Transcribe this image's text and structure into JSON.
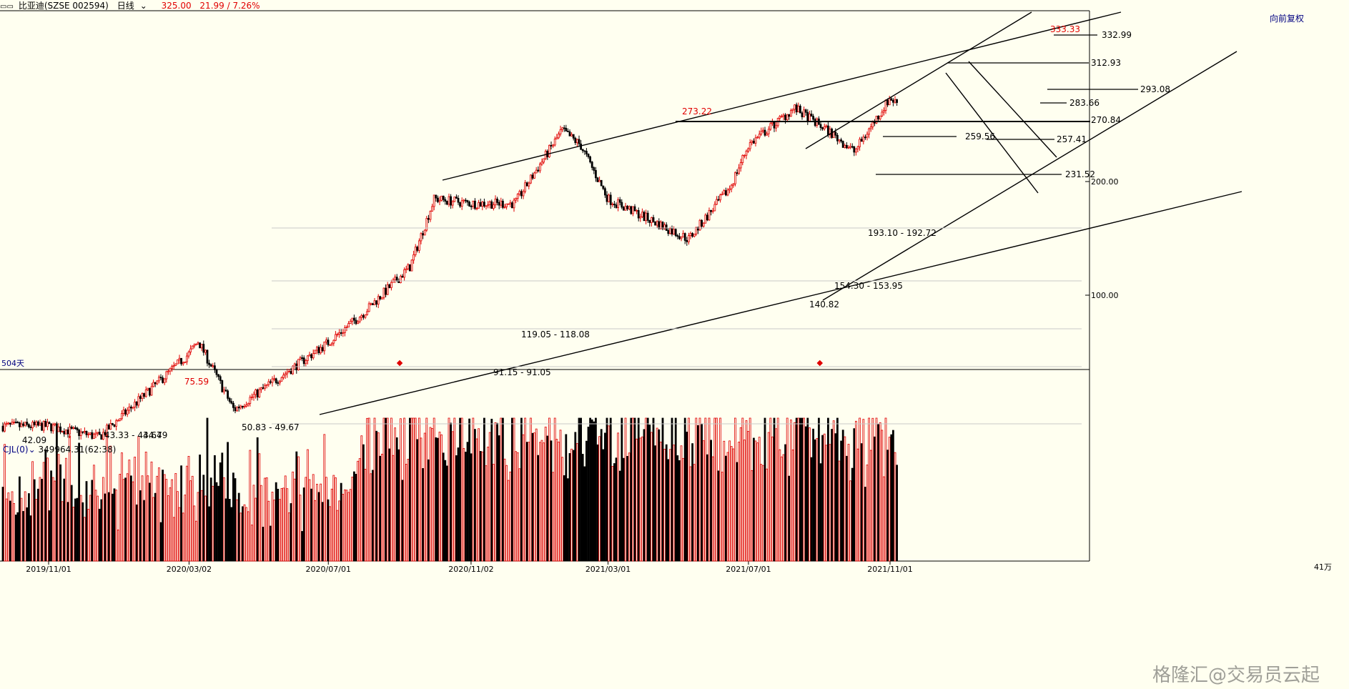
{
  "header": {
    "menu_icon": "window-menu-icon",
    "title": "比亚迪(SZSE 002594)",
    "period": "日线",
    "price": "325.00",
    "change": "21.99 / 7.26%",
    "adjust": "向前复权"
  },
  "volume_panel": {
    "indicator": "CJL(0)",
    "value": "349964.31(62:38)",
    "axis_label": "41万"
  },
  "watermark": "格隆汇@交易员云起",
  "colors": {
    "up": "#e00000",
    "down": "#000000",
    "background": "#fffff0",
    "axis": "#000080"
  },
  "chart_data": {
    "type": "candlestick",
    "price_axis": {
      "ticks": [
        "200.00",
        "100.00"
      ],
      "scale": "log"
    },
    "x_ticks": [
      "2019/11/01",
      "2020/03/02",
      "2020/07/01",
      "2020/11/02",
      "2021/03/01",
      "2021/07/01",
      "2021/11/01"
    ],
    "day_count_label": "504天",
    "peak_labels": [
      "75.59",
      "273.22",
      "333.33"
    ],
    "low_labels": [
      "42.09",
      "140.82"
    ],
    "zone_labels": [
      "43.33 - 43.64",
      "44.79",
      "50.83 - 49.67",
      "91.15 - 91.05",
      "119.05 - 118.08",
      "154.30 - 153.95",
      "193.10 - 192.72"
    ],
    "level_labels": [
      "332.99",
      "312.93",
      "293.08",
      "283.66",
      "270.84",
      "259.56",
      "257.41",
      "231.52"
    ],
    "key_points": [
      {
        "date": "2019/11/01",
        "price": 45
      },
      {
        "date": "2019/12/15",
        "price": 42.09
      },
      {
        "date": "2020/03/02",
        "price": 70
      },
      {
        "date": "2020/03/10",
        "price": 75.59
      },
      {
        "date": "2020/04/10",
        "price": 49.67
      },
      {
        "date": "2020/07/01",
        "price": 75
      },
      {
        "date": "2020/08/01",
        "price": 90
      },
      {
        "date": "2020/09/10",
        "price": 119
      },
      {
        "date": "2020/10/01",
        "price": 180
      },
      {
        "date": "2020/11/02",
        "price": 175
      },
      {
        "date": "2020/12/10",
        "price": 175
      },
      {
        "date": "2021/01/20",
        "price": 273.22
      },
      {
        "date": "2021/02/05",
        "price": 250
      },
      {
        "date": "2021/03/01",
        "price": 180
      },
      {
        "date": "2021/05/10",
        "price": 140.82
      },
      {
        "date": "2021/06/15",
        "price": 193
      },
      {
        "date": "2021/07/01",
        "price": 250
      },
      {
        "date": "2021/08/10",
        "price": 312.93
      },
      {
        "date": "2021/09/10",
        "price": 270
      },
      {
        "date": "2021/10/01",
        "price": 240
      },
      {
        "date": "2021/11/01",
        "price": 333.33
      },
      {
        "date": "2021/11/05",
        "price": 325
      }
    ]
  }
}
